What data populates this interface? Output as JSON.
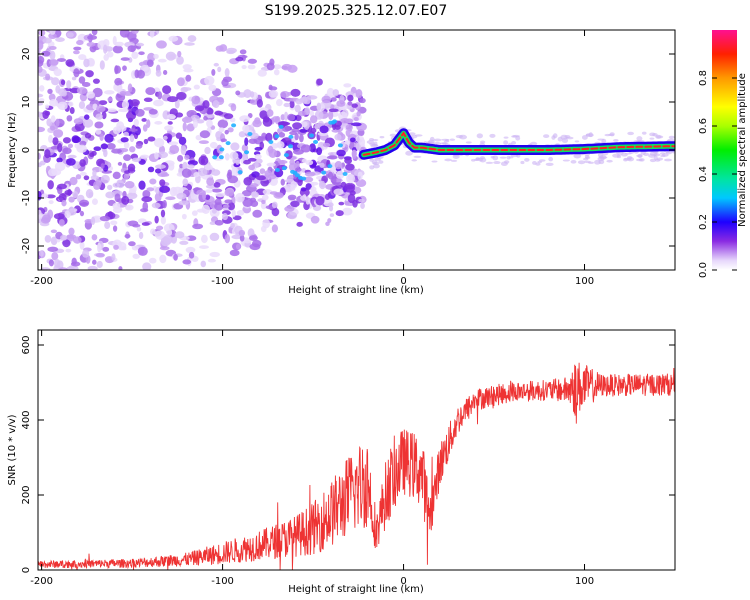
{
  "title": "S199.2025.325.12.07.E07",
  "chart_data": [
    {
      "type": "heatmap",
      "xlabel": "Height of straight line (km)",
      "ylabel": "Frequency (Hz)",
      "xlim": [
        -202,
        150
      ],
      "ylim": [
        -25,
        25
      ],
      "xticks": [
        -200,
        -100,
        0,
        100
      ],
      "yticks": [
        -20,
        -10,
        0,
        10,
        20
      ],
      "colorbar": {
        "label": "Normalized spectral amplitude",
        "ticks": [
          0.0,
          0.2,
          0.4,
          0.6,
          0.8
        ],
        "tick_labels": [
          "0.0",
          "0.2",
          "0.4",
          "0.6",
          "0.8"
        ],
        "range": [
          0,
          1
        ]
      },
      "ridge": {
        "description_x": [
          -22,
          -15,
          -10,
          -5,
          0,
          3,
          6,
          10,
          20,
          50,
          80,
          100,
          120,
          150
        ],
        "freq_hz": [
          -1,
          -0.5,
          0,
          1,
          3.5,
          1.5,
          0.5,
          0.5,
          0,
          0,
          0,
          0.2,
          0.6,
          0.8
        ]
      }
    },
    {
      "type": "line",
      "xlabel": "Height of straight line (km)",
      "ylabel": "SNR (10 * v/v)",
      "xlim": [
        -202,
        150
      ],
      "ylim": [
        0,
        640
      ],
      "xticks": [
        -200,
        -100,
        0,
        100
      ],
      "yticks": [
        0,
        200,
        400,
        600
      ],
      "color": "#ee3333",
      "envelope": {
        "x": [
          -202,
          -150,
          -120,
          -100,
          -80,
          -60,
          -50,
          -40,
          -30,
          -20,
          -15,
          -10,
          -5,
          0,
          5,
          10,
          13,
          15,
          20,
          30,
          40,
          60,
          80,
          90,
          95,
          100,
          110,
          150
        ],
        "mean": [
          15,
          18,
          28,
          45,
          65,
          90,
          110,
          150,
          200,
          240,
          100,
          200,
          260,
          290,
          280,
          260,
          180,
          150,
          280,
          400,
          455,
          475,
          480,
          480,
          485,
          490,
          492,
          495
        ],
        "noise": [
          10,
          12,
          18,
          30,
          40,
          55,
          70,
          90,
          110,
          130,
          50,
          90,
          100,
          90,
          90,
          100,
          80,
          60,
          60,
          40,
          30,
          28,
          28,
          35,
          80,
          60,
          30,
          30
        ]
      }
    }
  ]
}
